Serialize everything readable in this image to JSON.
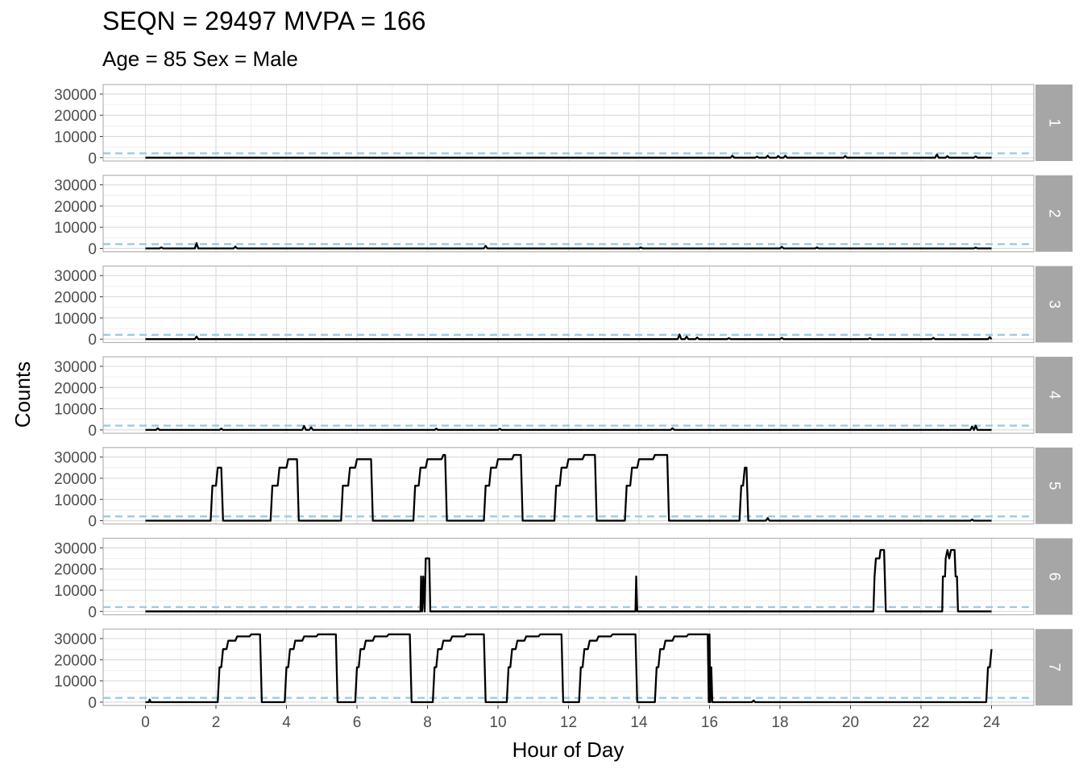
{
  "chart_data": {
    "type": "line",
    "title": "SEQN = 29497 MVPA = 166",
    "subtitle": "Age = 85 Sex = Male",
    "xlabel": "Hour of Day",
    "ylabel": "Counts",
    "xlim": [
      -1.2,
      25.2
    ],
    "ylim": [
      -1600,
      34500
    ],
    "x_ticks": [
      0,
      2,
      4,
      6,
      8,
      10,
      12,
      14,
      16,
      18,
      20,
      22,
      24
    ],
    "y_ticks": [
      0,
      10000,
      20000,
      30000
    ],
    "threshold": 2020,
    "grid": true,
    "line_color": "#000000",
    "threshold_color": "#9ecae1",
    "strip_color": "#a6a6a6",
    "panels": [
      {
        "label": "1",
        "points": [
          [
            0,
            0
          ],
          [
            16.6,
            0
          ],
          [
            16.65,
            900
          ],
          [
            16.7,
            0
          ],
          [
            17.3,
            0
          ],
          [
            17.35,
            500
          ],
          [
            17.4,
            0
          ],
          [
            17.6,
            0
          ],
          [
            17.65,
            900
          ],
          [
            17.7,
            0
          ],
          [
            17.9,
            0
          ],
          [
            17.95,
            800
          ],
          [
            18.0,
            0
          ],
          [
            18.1,
            0
          ],
          [
            18.15,
            900
          ],
          [
            18.2,
            0
          ],
          [
            19.8,
            0
          ],
          [
            19.85,
            800
          ],
          [
            19.9,
            0
          ],
          [
            22.4,
            0
          ],
          [
            22.45,
            1500
          ],
          [
            22.5,
            0
          ],
          [
            22.7,
            0
          ],
          [
            22.75,
            700
          ],
          [
            22.8,
            0
          ],
          [
            23.5,
            0
          ],
          [
            23.55,
            600
          ],
          [
            23.6,
            0
          ],
          [
            24,
            0
          ]
        ]
      },
      {
        "label": "2",
        "points": [
          [
            0,
            0
          ],
          [
            0.4,
            0
          ],
          [
            0.45,
            500
          ],
          [
            0.5,
            0
          ],
          [
            1.4,
            0
          ],
          [
            1.45,
            2500
          ],
          [
            1.5,
            0
          ],
          [
            2.5,
            0
          ],
          [
            2.55,
            900
          ],
          [
            2.6,
            0
          ],
          [
            9.6,
            0
          ],
          [
            9.65,
            1200
          ],
          [
            9.7,
            0
          ],
          [
            14,
            0
          ],
          [
            14.05,
            500
          ],
          [
            14.1,
            0
          ],
          [
            18,
            0
          ],
          [
            18.05,
            800
          ],
          [
            18.1,
            0
          ],
          [
            19,
            0
          ],
          [
            19.05,
            500
          ],
          [
            19.1,
            0
          ],
          [
            23.5,
            0
          ],
          [
            23.55,
            400
          ],
          [
            23.6,
            0
          ],
          [
            24,
            0
          ]
        ]
      },
      {
        "label": "3",
        "points": [
          [
            0,
            0
          ],
          [
            1.4,
            0
          ],
          [
            1.45,
            1300
          ],
          [
            1.5,
            0
          ],
          [
            15.1,
            0
          ],
          [
            15.15,
            2200
          ],
          [
            15.2,
            0
          ],
          [
            15.3,
            0
          ],
          [
            15.35,
            1200
          ],
          [
            15.4,
            0
          ],
          [
            15.6,
            0
          ],
          [
            15.65,
            800
          ],
          [
            15.7,
            0
          ],
          [
            16.5,
            0
          ],
          [
            16.55,
            500
          ],
          [
            16.6,
            0
          ],
          [
            18,
            0
          ],
          [
            18.05,
            600
          ],
          [
            18.1,
            0
          ],
          [
            20.5,
            0
          ],
          [
            20.55,
            500
          ],
          [
            20.6,
            0
          ],
          [
            22.3,
            0
          ],
          [
            22.35,
            600
          ],
          [
            22.4,
            0
          ],
          [
            23.9,
            0
          ],
          [
            23.95,
            1000
          ],
          [
            24,
            0
          ]
        ]
      },
      {
        "label": "4",
        "points": [
          [
            0,
            0
          ],
          [
            0.3,
            0
          ],
          [
            0.35,
            800
          ],
          [
            0.4,
            0
          ],
          [
            2.1,
            0
          ],
          [
            2.15,
            600
          ],
          [
            2.2,
            0
          ],
          [
            4.45,
            0
          ],
          [
            4.5,
            1900
          ],
          [
            4.55,
            0
          ],
          [
            4.65,
            0
          ],
          [
            4.7,
            1200
          ],
          [
            4.75,
            0
          ],
          [
            8.2,
            0
          ],
          [
            8.25,
            600
          ],
          [
            8.3,
            0
          ],
          [
            10,
            0
          ],
          [
            10.05,
            500
          ],
          [
            10.1,
            0
          ],
          [
            14.9,
            0
          ],
          [
            14.95,
            800
          ],
          [
            15.0,
            0
          ],
          [
            23.4,
            0
          ],
          [
            23.45,
            1600
          ],
          [
            23.5,
            0
          ],
          [
            23.55,
            2000
          ],
          [
            23.6,
            0
          ],
          [
            24,
            0
          ]
        ]
      },
      {
        "label": "5",
        "points": [
          [
            0,
            0
          ],
          [
            1.85,
            0
          ],
          [
            1.9,
            16500
          ],
          [
            2.0,
            16500
          ],
          [
            2.05,
            25000
          ],
          [
            2.15,
            25000
          ],
          [
            2.2,
            0
          ],
          [
            3.55,
            0
          ],
          [
            3.6,
            16500
          ],
          [
            3.75,
            16500
          ],
          [
            3.8,
            25000
          ],
          [
            4.0,
            25000
          ],
          [
            4.05,
            29000
          ],
          [
            4.3,
            29000
          ],
          [
            4.35,
            0
          ],
          [
            5.55,
            0
          ],
          [
            5.6,
            16500
          ],
          [
            5.75,
            16500
          ],
          [
            5.8,
            25000
          ],
          [
            5.95,
            25000
          ],
          [
            6.0,
            29000
          ],
          [
            6.4,
            29000
          ],
          [
            6.45,
            0
          ],
          [
            7.6,
            0
          ],
          [
            7.65,
            16500
          ],
          [
            7.75,
            16500
          ],
          [
            7.8,
            25000
          ],
          [
            7.95,
            25000
          ],
          [
            8.0,
            29000
          ],
          [
            8.4,
            29000
          ],
          [
            8.45,
            31000
          ],
          [
            8.5,
            31000
          ],
          [
            8.55,
            0
          ],
          [
            9.6,
            0
          ],
          [
            9.65,
            16500
          ],
          [
            9.75,
            16500
          ],
          [
            9.8,
            25000
          ],
          [
            9.95,
            25000
          ],
          [
            10.0,
            29000
          ],
          [
            10.4,
            29000
          ],
          [
            10.45,
            31000
          ],
          [
            10.65,
            31000
          ],
          [
            10.7,
            0
          ],
          [
            11.6,
            0
          ],
          [
            11.65,
            16500
          ],
          [
            11.75,
            16500
          ],
          [
            11.8,
            25000
          ],
          [
            11.95,
            25000
          ],
          [
            12.0,
            29000
          ],
          [
            12.4,
            29000
          ],
          [
            12.45,
            31000
          ],
          [
            12.75,
            31000
          ],
          [
            12.8,
            0
          ],
          [
            13.6,
            0
          ],
          [
            13.65,
            16500
          ],
          [
            13.75,
            16500
          ],
          [
            13.8,
            25000
          ],
          [
            13.95,
            25000
          ],
          [
            14.0,
            29000
          ],
          [
            14.4,
            29000
          ],
          [
            14.45,
            31000
          ],
          [
            14.8,
            31000
          ],
          [
            14.85,
            0
          ],
          [
            16.85,
            0
          ],
          [
            16.9,
            16500
          ],
          [
            16.95,
            16500
          ],
          [
            17.0,
            25000
          ],
          [
            17.05,
            25000
          ],
          [
            17.1,
            0
          ],
          [
            17.6,
            0
          ],
          [
            17.65,
            1200
          ],
          [
            17.7,
            0
          ],
          [
            23.4,
            0
          ],
          [
            23.45,
            500
          ],
          [
            23.5,
            0
          ],
          [
            24,
            0
          ]
        ]
      },
      {
        "label": "6",
        "points": [
          [
            0,
            0
          ],
          [
            7.8,
            0
          ],
          [
            7.82,
            16500
          ],
          [
            7.85,
            0
          ],
          [
            7.88,
            16500
          ],
          [
            7.92,
            0
          ],
          [
            7.95,
            25000
          ],
          [
            8.05,
            25000
          ],
          [
            8.08,
            0
          ],
          [
            13.9,
            0
          ],
          [
            13.92,
            16500
          ],
          [
            13.95,
            0
          ],
          [
            20.65,
            0
          ],
          [
            20.68,
            16500
          ],
          [
            20.72,
            25000
          ],
          [
            20.82,
            25000
          ],
          [
            20.85,
            29000
          ],
          [
            20.95,
            29000
          ],
          [
            21.0,
            0
          ],
          [
            22.6,
            0
          ],
          [
            22.62,
            16500
          ],
          [
            22.68,
            16500
          ],
          [
            22.7,
            25000
          ],
          [
            22.75,
            29000
          ],
          [
            22.8,
            25000
          ],
          [
            22.85,
            29000
          ],
          [
            22.95,
            29000
          ],
          [
            22.98,
            16500
          ],
          [
            23.02,
            16500
          ],
          [
            23.05,
            0
          ],
          [
            24,
            0
          ]
        ]
      },
      {
        "label": "7",
        "points": [
          [
            0,
            0
          ],
          [
            0.1,
            0
          ],
          [
            0.12,
            1200
          ],
          [
            0.15,
            0
          ],
          [
            2.05,
            0
          ],
          [
            2.1,
            16500
          ],
          [
            2.15,
            16500
          ],
          [
            2.2,
            25000
          ],
          [
            2.3,
            25000
          ],
          [
            2.35,
            29000
          ],
          [
            2.55,
            29000
          ],
          [
            2.6,
            31000
          ],
          [
            2.95,
            31000
          ],
          [
            3.0,
            32000
          ],
          [
            3.25,
            32000
          ],
          [
            3.3,
            0
          ],
          [
            3.95,
            0
          ],
          [
            4.0,
            16500
          ],
          [
            4.05,
            16500
          ],
          [
            4.1,
            25000
          ],
          [
            4.2,
            25000
          ],
          [
            4.25,
            29000
          ],
          [
            4.45,
            29000
          ],
          [
            4.5,
            31000
          ],
          [
            4.85,
            31000
          ],
          [
            4.9,
            32000
          ],
          [
            5.4,
            32000
          ],
          [
            5.45,
            0
          ],
          [
            5.95,
            0
          ],
          [
            6.0,
            16500
          ],
          [
            6.05,
            16500
          ],
          [
            6.1,
            25000
          ],
          [
            6.2,
            25000
          ],
          [
            6.25,
            29000
          ],
          [
            6.45,
            29000
          ],
          [
            6.5,
            31000
          ],
          [
            6.85,
            31000
          ],
          [
            6.9,
            32000
          ],
          [
            7.5,
            32000
          ],
          [
            7.55,
            0
          ],
          [
            8.15,
            0
          ],
          [
            8.2,
            16500
          ],
          [
            8.25,
            16500
          ],
          [
            8.3,
            25000
          ],
          [
            8.4,
            25000
          ],
          [
            8.45,
            29000
          ],
          [
            8.65,
            29000
          ],
          [
            8.7,
            31000
          ],
          [
            9.05,
            31000
          ],
          [
            9.1,
            32000
          ],
          [
            9.6,
            32000
          ],
          [
            9.65,
            0
          ],
          [
            10.25,
            0
          ],
          [
            10.3,
            16500
          ],
          [
            10.35,
            16500
          ],
          [
            10.4,
            25000
          ],
          [
            10.5,
            25000
          ],
          [
            10.55,
            29000
          ],
          [
            10.75,
            29000
          ],
          [
            10.8,
            31000
          ],
          [
            11.15,
            31000
          ],
          [
            11.2,
            32000
          ],
          [
            11.8,
            32000
          ],
          [
            11.85,
            0
          ],
          [
            12.3,
            0
          ],
          [
            12.35,
            16500
          ],
          [
            12.4,
            16500
          ],
          [
            12.45,
            25000
          ],
          [
            12.55,
            25000
          ],
          [
            12.6,
            29000
          ],
          [
            12.8,
            29000
          ],
          [
            12.85,
            31000
          ],
          [
            13.2,
            31000
          ],
          [
            13.25,
            32000
          ],
          [
            13.9,
            32000
          ],
          [
            13.95,
            0
          ],
          [
            14.45,
            0
          ],
          [
            14.5,
            16500
          ],
          [
            14.55,
            16500
          ],
          [
            14.6,
            25000
          ],
          [
            14.7,
            25000
          ],
          [
            14.75,
            29000
          ],
          [
            14.95,
            29000
          ],
          [
            15.0,
            31000
          ],
          [
            15.35,
            31000
          ],
          [
            15.4,
            32000
          ],
          [
            15.95,
            32000
          ],
          [
            15.98,
            0
          ],
          [
            16.0,
            32000
          ],
          [
            16.02,
            0
          ],
          [
            16.05,
            16500
          ],
          [
            16.08,
            0
          ],
          [
            17.2,
            0
          ],
          [
            17.25,
            800
          ],
          [
            17.3,
            0
          ],
          [
            23.85,
            0
          ],
          [
            23.9,
            16500
          ],
          [
            23.95,
            16500
          ],
          [
            24.0,
            25000
          ]
        ]
      }
    ]
  }
}
